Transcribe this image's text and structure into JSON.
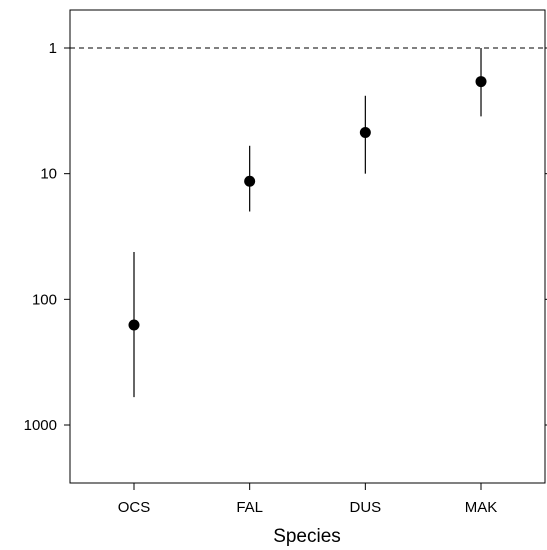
{
  "chart_data": {
    "type": "scatter",
    "title": "",
    "xlabel": "Species",
    "ylabel": "",
    "categories": [
      "OCS",
      "FAL",
      "DUS",
      "MAK"
    ],
    "y_scale": "log",
    "y_axis_inverted": true,
    "ylim": [
      0.5,
      2500
    ],
    "y_ticks": [
      1,
      10,
      100,
      1000
    ],
    "y_tick_labels": [
      "1",
      "10",
      "100",
      "1000"
    ],
    "reference_line": {
      "value": 1,
      "style": "dashed"
    },
    "series": [
      {
        "points": [
          {
            "category": "OCS",
            "value": 160,
            "lower": 42,
            "upper": 600
          },
          {
            "category": "FAL",
            "value": 11.5,
            "lower": 6,
            "upper": 20
          },
          {
            "category": "DUS",
            "value": 4.7,
            "lower": 2.4,
            "upper": 10
          },
          {
            "category": "MAK",
            "value": 1.85,
            "lower": 1,
            "upper": 3.5
          }
        ]
      }
    ],
    "grid": false,
    "legend": "none",
    "colors": {
      "marker": "#000000",
      "axis": "#000000"
    }
  }
}
